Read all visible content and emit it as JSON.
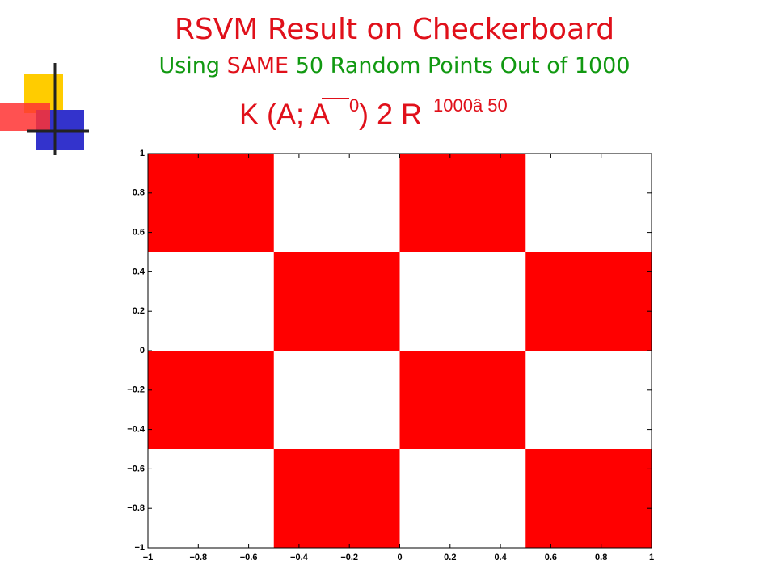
{
  "slide": {
    "title": "RSVM Result on Checkerboard",
    "subtitle": [
      "Using",
      "SAME",
      "50 Random Points Out of 1000"
    ],
    "formula": {
      "main": "K (A; A",
      "prime": "0",
      "rest": ") 2 R",
      "sup": "1000â 50"
    }
  },
  "chart_data": {
    "type": "checkerboard",
    "color": "#ff0000",
    "regions": [
      {
        "x": [
          -1,
          -0.5
        ],
        "y": [
          0.5,
          1
        ]
      },
      {
        "x": [
          0,
          0.5
        ],
        "y": [
          0.5,
          1
        ]
      },
      {
        "x": [
          -0.5,
          0
        ],
        "y": [
          0,
          0.5
        ]
      },
      {
        "x": [
          0.5,
          1
        ],
        "y": [
          0,
          0.5
        ]
      },
      {
        "x": [
          -1,
          -0.5
        ],
        "y": [
          -0.5,
          0
        ]
      },
      {
        "x": [
          0,
          0.5
        ],
        "y": [
          -0.5,
          0
        ]
      },
      {
        "x": [
          -0.5,
          0
        ],
        "y": [
          -1,
          -0.5
        ]
      },
      {
        "x": [
          0.5,
          1
        ],
        "y": [
          -1,
          -0.5
        ]
      }
    ],
    "xlim": [
      -1,
      1
    ],
    "ylim": [
      -1,
      1
    ],
    "xticks": [
      {
        "value": -1,
        "label": "−1"
      },
      {
        "value": -0.8,
        "label": "−0.8"
      },
      {
        "value": -0.6,
        "label": "−0.6"
      },
      {
        "value": -0.4,
        "label": "−0.4"
      },
      {
        "value": -0.2,
        "label": "−0.2"
      },
      0,
      0.2,
      0.4,
      0.6,
      0.8,
      1
    ],
    "yticks": [
      {
        "value": -1,
        "label": "−1"
      },
      {
        "value": -0.8,
        "label": "−0.8"
      },
      {
        "value": -0.6,
        "label": "−0.6"
      },
      {
        "value": -0.4,
        "label": "−0.4"
      },
      {
        "value": -0.2,
        "label": "−0.2"
      },
      0,
      0.2,
      0.4,
      0.6,
      0.8,
      1
    ]
  }
}
